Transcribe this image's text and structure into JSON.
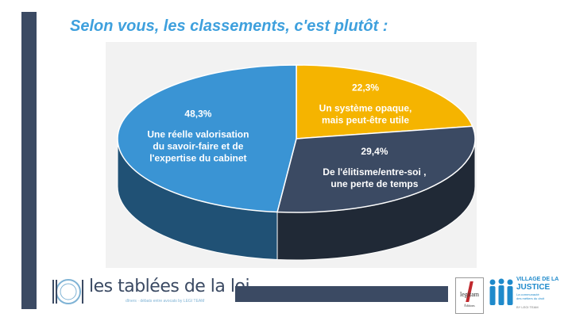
{
  "title": "Selon vous, les classements, c'est plutôt :",
  "chart_data": {
    "type": "pie",
    "title": "",
    "slices": [
      {
        "label_lines": [
          "Un système opaque,",
          "mais peut-être utile"
        ],
        "percent_label": "22,3%",
        "value": 22.3,
        "color": "#f5b400",
        "label_color": "#ffffff"
      },
      {
        "label_lines": [
          "De l'élitisme/entre-soi ,",
          "une perte de temps"
        ],
        "percent_label": "29,4%",
        "value": 29.4,
        "color": "#3b4a63",
        "label_color": "#ffffff"
      },
      {
        "label_lines": [
          "Une réelle valorisation",
          "du savoir-faire et de",
          "l'expertise du cabinet"
        ],
        "percent_label": "48,3%",
        "value": 48.3,
        "color": "#3a94d4",
        "label_color": "#ffffff"
      }
    ],
    "start_angle_deg": 0,
    "three_d": true,
    "legend": "none"
  },
  "footer": {
    "brand_name": "les tablées de la loi",
    "brand_tagline": "dîners · débats entre avocats by LEGI TEAM",
    "legitam_word": "legitam",
    "legitam_sub": "Éditions",
    "village_line1": "VILLAGE DE LA",
    "village_line2": "JUSTICE",
    "village_line3": "La communauté",
    "village_line4": "des métiers du droit",
    "village_line5": "BY LEGI TEAM"
  },
  "colors": {
    "accent_bar": "#3b4a63",
    "title": "#3ea0dd",
    "chart_background": "#f2f2f2"
  }
}
